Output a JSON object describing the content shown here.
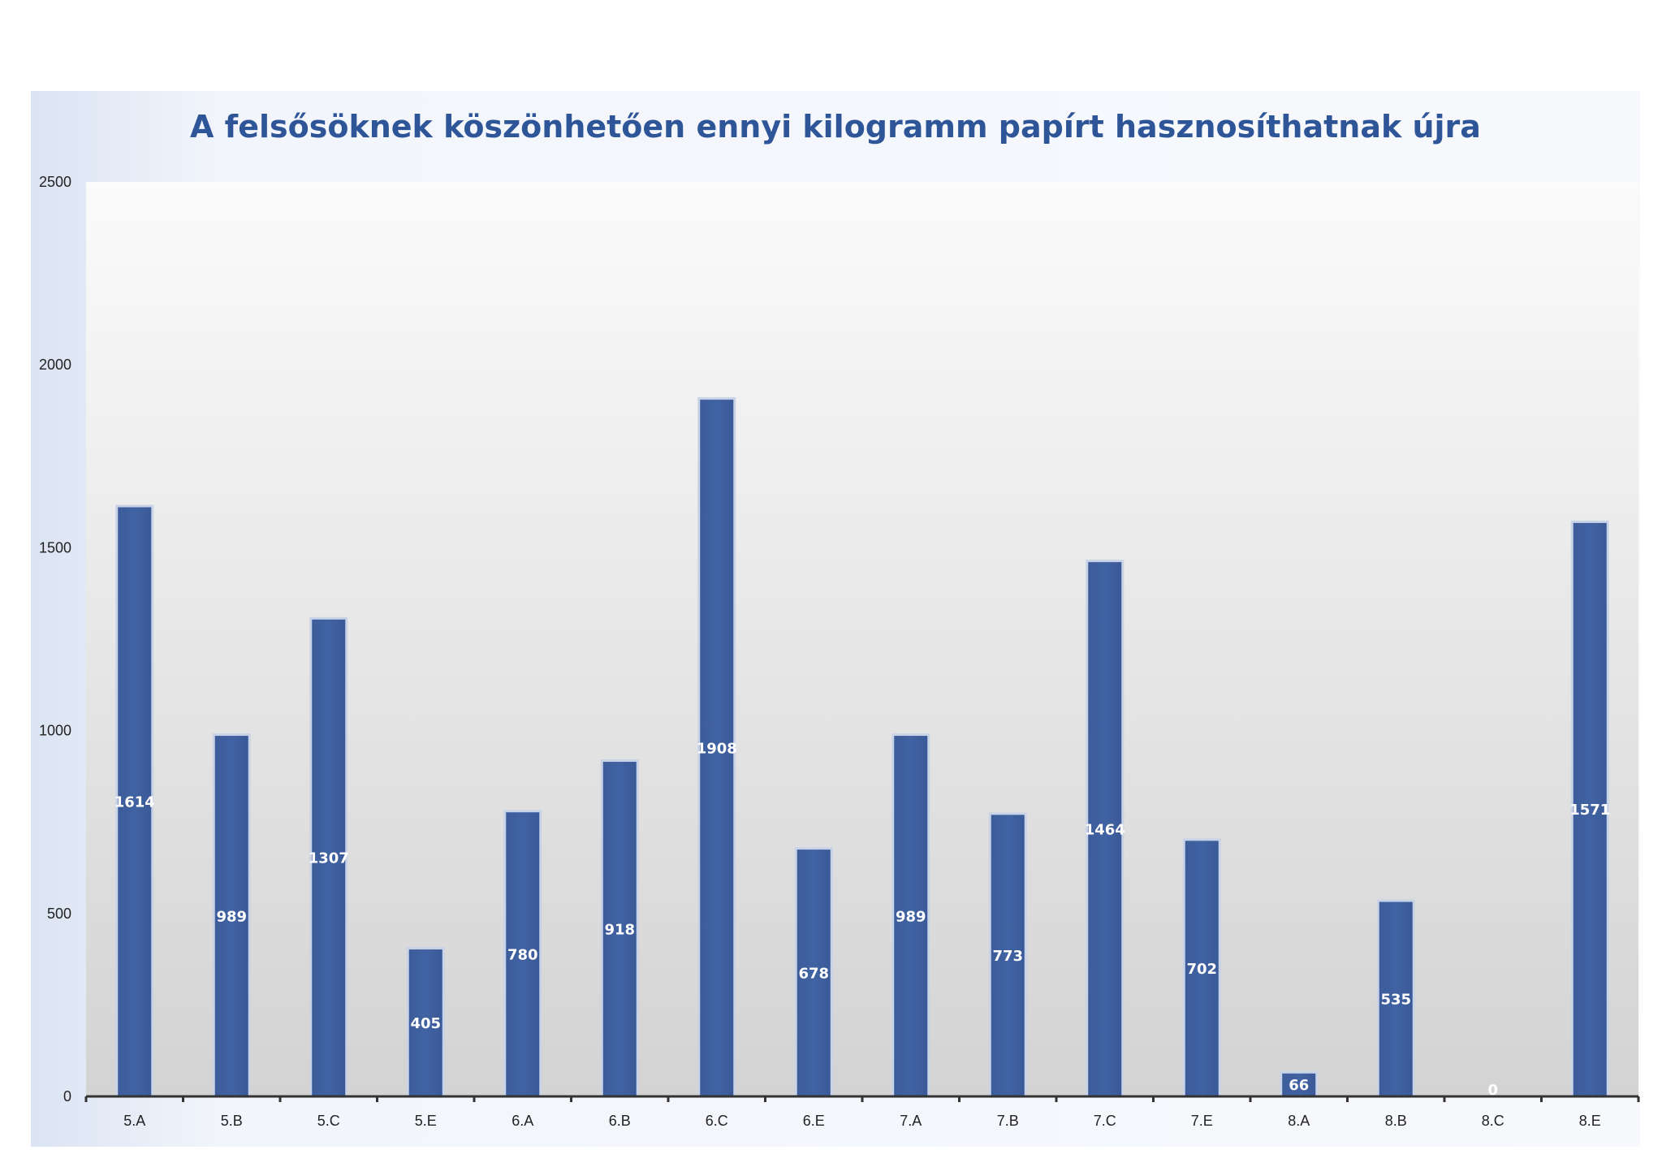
{
  "chart_data": {
    "type": "bar",
    "title": "A felsősöknek köszönhetően ennyi kilogramm papírt hasznosíthatnak újra",
    "xlabel": "",
    "ylabel": "",
    "ylim": [
      0,
      2500
    ],
    "yticks": [
      0,
      500,
      1000,
      1500,
      2000,
      2500
    ],
    "categories": [
      "5.A",
      "5.B",
      "5.C",
      "5.E",
      "6.A",
      "6.B",
      "6.C",
      "6.E",
      "7.A",
      "7.B",
      "7.C",
      "7.E",
      "8.A",
      "8.B",
      "8.C",
      "8.E"
    ],
    "values": [
      1614,
      989,
      1307,
      405,
      780,
      918,
      1908,
      678,
      989,
      773,
      1464,
      702,
      66,
      535,
      0,
      1571
    ],
    "data_labels": [
      "1614",
      "989",
      "1307",
      "405",
      "780",
      "918",
      "1908",
      "678",
      "989",
      "773",
      "1464",
      "702",
      "66",
      "535",
      "0",
      "1571"
    ],
    "grid": false,
    "legend": "none",
    "colors": {
      "bar": "#3f5f9e",
      "bar_edge": "#c9d3e8",
      "title": "#2e5597",
      "axis": "#333333"
    }
  }
}
